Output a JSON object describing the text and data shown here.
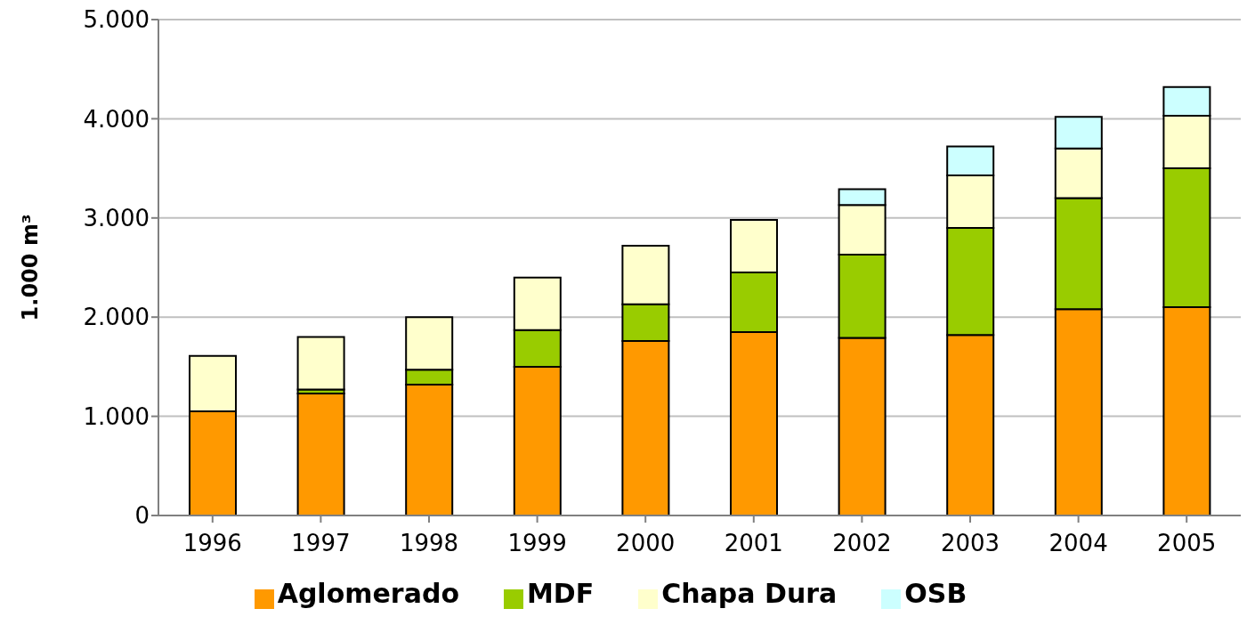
{
  "chart_data": {
    "type": "bar",
    "stacked": true,
    "ylabel": "1.000 m³",
    "categories": [
      "1996",
      "1997",
      "1998",
      "1999",
      "2000",
      "2001",
      "2002",
      "2003",
      "2004",
      "2005"
    ],
    "series": [
      {
        "name": "Aglomerado",
        "color": "#ff9900",
        "values": [
          1050,
          1230,
          1320,
          1500,
          1760,
          1850,
          1790,
          1820,
          2080,
          2100
        ]
      },
      {
        "name": "MDF",
        "color": "#99cc00",
        "values": [
          0,
          40,
          150,
          370,
          370,
          600,
          840,
          1080,
          1120,
          1400
        ]
      },
      {
        "name": "Chapa Dura",
        "color": "#ffffcc",
        "values": [
          560,
          530,
          530,
          530,
          590,
          530,
          500,
          530,
          500,
          530
        ]
      },
      {
        "name": "OSB",
        "color": "#ccffff",
        "values": [
          0,
          0,
          0,
          0,
          0,
          0,
          160,
          290,
          320,
          290
        ]
      }
    ],
    "ylim": [
      0,
      5000
    ],
    "yticks": [
      {
        "value": 0,
        "label": "0"
      },
      {
        "value": 1000,
        "label": "1.000"
      },
      {
        "value": 2000,
        "label": "2.000"
      },
      {
        "value": 3000,
        "label": "3.000"
      },
      {
        "value": 4000,
        "label": "4.000"
      },
      {
        "value": 5000,
        "label": "5.000"
      }
    ],
    "grid": "y",
    "legend": "bottom"
  }
}
